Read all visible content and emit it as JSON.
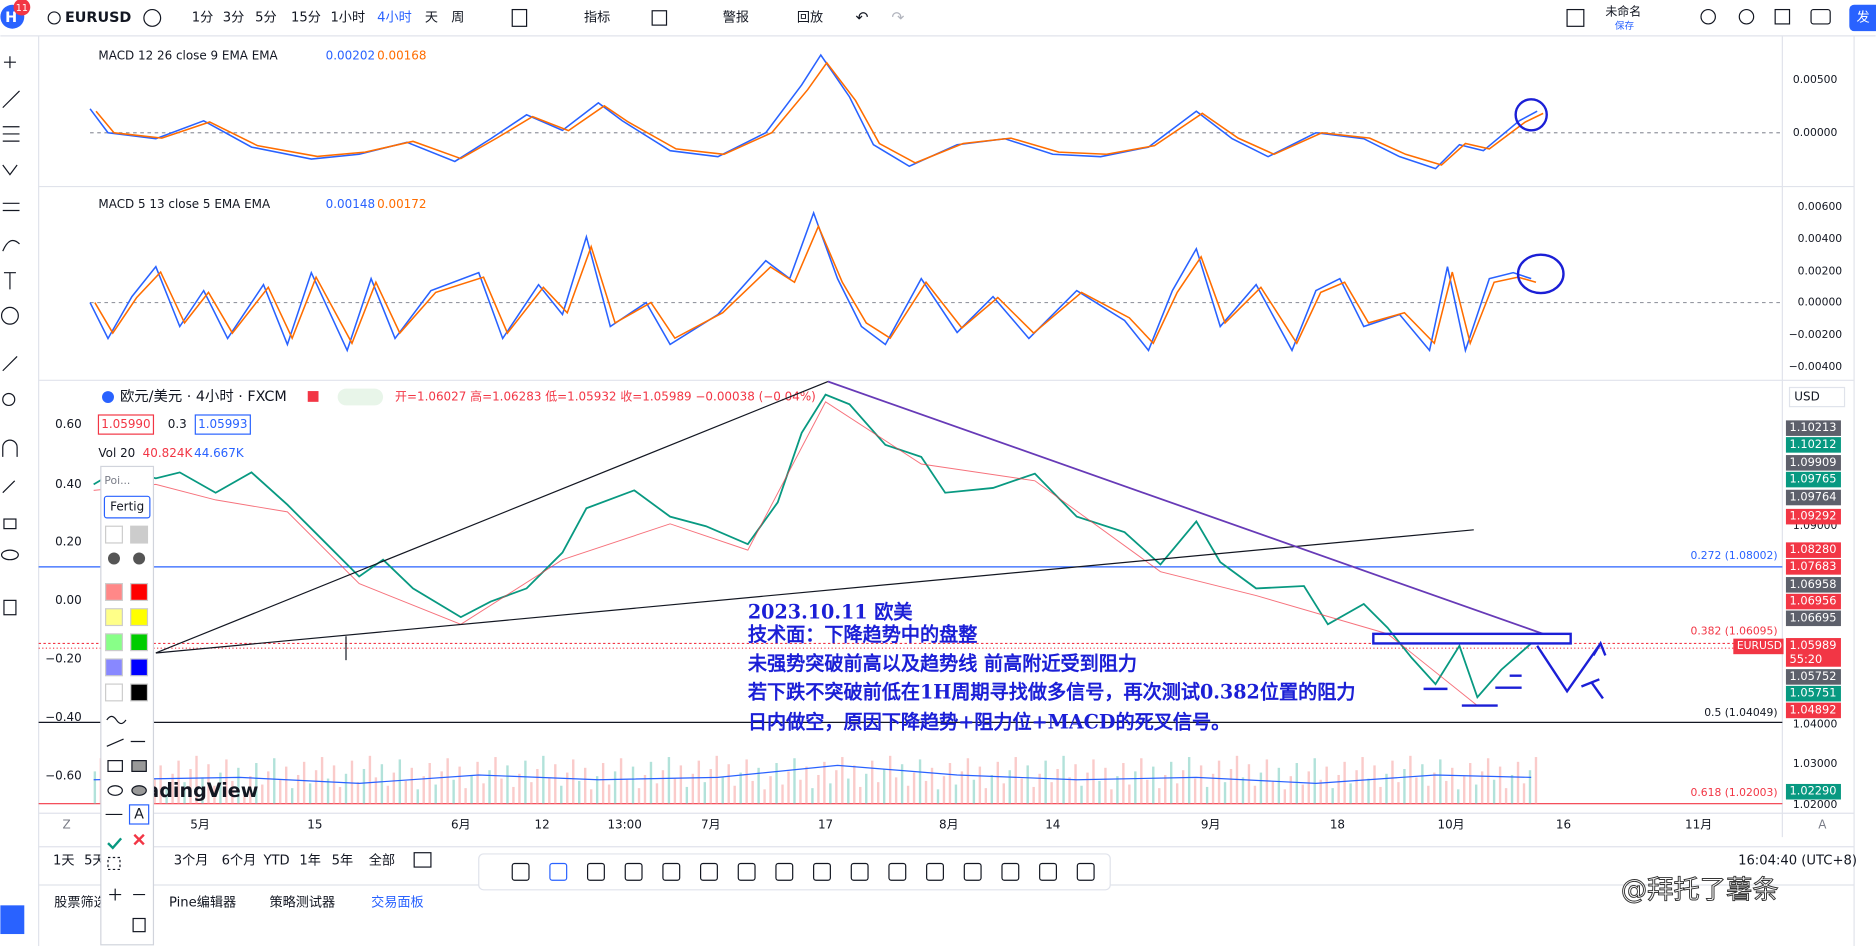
{
  "toolbar": {
    "badge": "11",
    "symbol": "EURUSD",
    "intervals": [
      "1分",
      "3分",
      "5分",
      "15分",
      "1小时",
      "4小时",
      "天",
      "周"
    ],
    "indicators": "指标",
    "alert": "警报",
    "replay": "回放",
    "layout_name": "未命名",
    "save": "保存",
    "publish": "发"
  },
  "macd1": {
    "label": "MACD 12 26 close 9 EMA EMA",
    "values": [
      "0.00202",
      "0.00168"
    ],
    "axis": [
      "0.00500",
      "0.00000"
    ]
  },
  "macd2": {
    "label": "MACD 5 13 close 5 EMA EMA",
    "values": [
      "0.00148",
      "0.00172"
    ],
    "axis": [
      "0.00600",
      "0.00400",
      "0.00200",
      "0.00000",
      "−0.00200",
      "−0.00400"
    ]
  },
  "main": {
    "title": "欧元/美元 · 4小时 · FXCM",
    "ohlc": "开=1.06027 高=1.06283 低=1.05932 收=1.05989 −0.00038 (−0.04%)",
    "bid": "1.05990",
    "spread": "0.3",
    "ask": "1.05993",
    "volume": {
      "label": "Vol 20",
      "v1": "40.824K",
      "v2": "44.667K"
    },
    "currency": "USD",
    "left_axis": [
      "0.60",
      "0.40",
      "0.20",
      "0.00",
      "−0.20",
      "−0.40",
      "−0.60"
    ],
    "right_axis": [
      "1.09000",
      "1.04000",
      "1.03000",
      "1.02000"
    ],
    "fib": [
      "0.272 (1.08002)",
      "0.382 (1.06095)",
      "0.5 (1.04049)",
      "0.618 (1.02003)"
    ],
    "price_tags": [
      {
        "text": "1.10213",
        "color": "#5d606b"
      },
      {
        "text": "1.10212",
        "color": "#089981"
      },
      {
        "text": "1.09909",
        "color": "#5d606b"
      },
      {
        "text": "1.09765",
        "color": "#089981"
      },
      {
        "text": "1.09764",
        "color": "#5d606b"
      },
      {
        "text": "1.09292",
        "color": "#f23645"
      },
      {
        "text": "1.08280",
        "color": "#f23645"
      },
      {
        "text": "1.07683",
        "color": "#f23645"
      },
      {
        "text": "1.06958",
        "color": "#5d606b"
      },
      {
        "text": "1.06956",
        "color": "#f23645"
      },
      {
        "text": "1.06695",
        "color": "#5d606b"
      },
      {
        "text": "1.05989",
        "color": "#f23645"
      },
      {
        "text": "1.05752",
        "color": "#5d606b"
      },
      {
        "text": "1.05751",
        "color": "#089981"
      },
      {
        "text": "1.04892",
        "color": "#f23645"
      },
      {
        "text": "1.02290",
        "color": "#089981"
      }
    ],
    "last_symbol": "EURUSD",
    "countdown": "55:20",
    "watermark": "TradingView"
  },
  "x_axis": [
    "5月",
    "15",
    "6月",
    "12",
    "13:00",
    "7月",
    "17",
    "8月",
    "14",
    "9月",
    "18",
    "10月",
    "16",
    "11月"
  ],
  "annotation": {
    "date": "2023.10.11 欧美",
    "lines": [
      "技术面：下降趋势中的盘整",
      "未强势突破前高以及趋势线  前高附近受到阻力",
      "若下跌不突破前低在1H周期寻找做多信号，再次测试0.382位置的阻力",
      "日内做空，原因下降趋势+阻力位+MACD的死叉信号。"
    ]
  },
  "drawing_panel": {
    "name": "Poi...",
    "done": "Fertig"
  },
  "bottom": {
    "ranges": [
      "1天",
      "5天",
      "3个月",
      "6个月",
      "YTD",
      "1年",
      "5年",
      "全部"
    ],
    "time": "16:04:40 (UTC+8)"
  },
  "tabs": [
    "股票筛选器",
    "Pine编辑器",
    "策略测试器",
    "交易面板"
  ],
  "credit": "@拜托了薯条"
}
